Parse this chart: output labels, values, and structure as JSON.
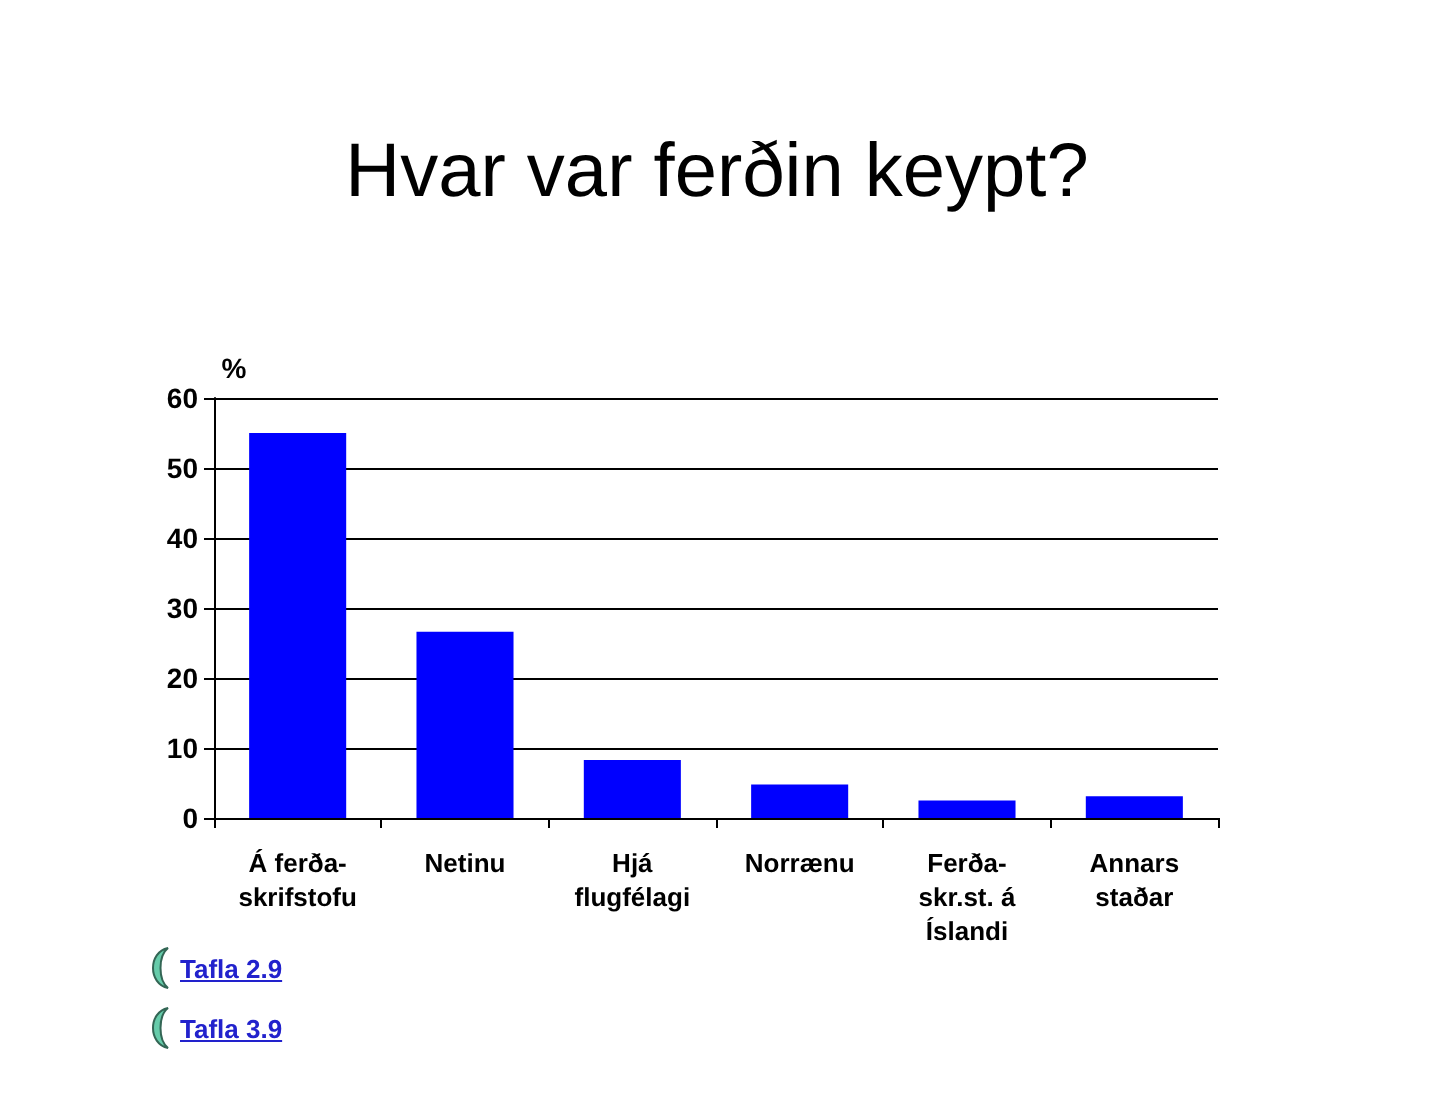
{
  "chart_data": {
    "type": "bar",
    "title": "Hvar var ferðin keypt?",
    "ylabel": "%",
    "categories": [
      "Á ferða-\nskrifstofu",
      "Netinu",
      "Hjá\nflugfélagi",
      "Norrænu",
      "Ferða-\nskr.st. á\nÍslandi",
      "Annars\nstaðar"
    ],
    "values": [
      55,
      26.6,
      8.3,
      4.8,
      2.5,
      3.1
    ],
    "color": "#0000ff",
    "ylim": [
      0,
      60
    ],
    "yticks": [
      0,
      10,
      20,
      30,
      40,
      50,
      60
    ],
    "grid": "y",
    "annotations": [
      "Tafla 2.9",
      "Tafla 3.9"
    ]
  }
}
